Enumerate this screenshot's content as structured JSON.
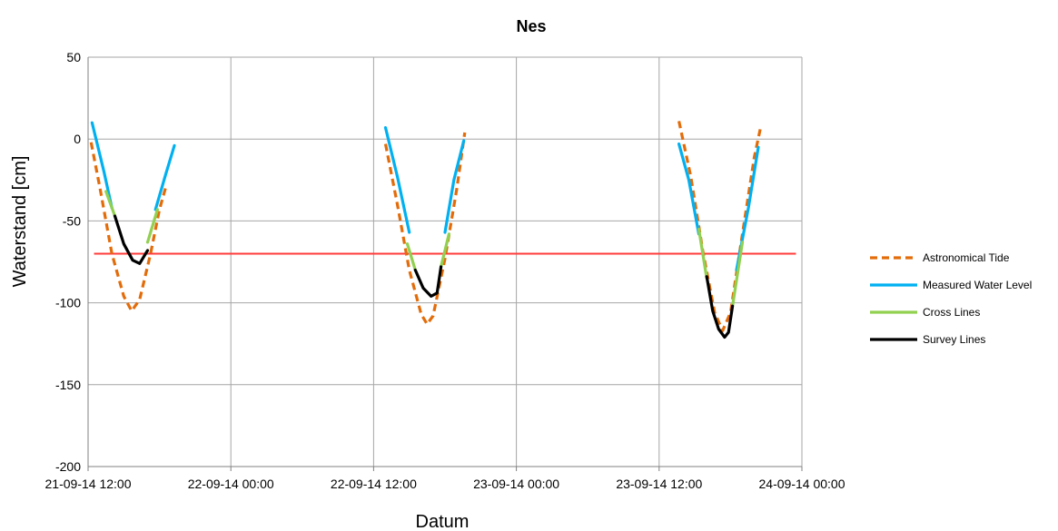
{
  "chart_data": {
    "type": "line",
    "title": "Nes",
    "xlabel": "Datum",
    "ylabel": "Waterstand [cm]",
    "x_ticks": [
      "21-09-14 12:00",
      "22-09-14 00:00",
      "22-09-14 12:00",
      "23-09-14 00:00",
      "23-09-14 12:00",
      "24-09-14 00:00"
    ],
    "xlim": [
      "2014-09-21 12:00",
      "2014-09-24 00:00"
    ],
    "ylim": [
      -200,
      50
    ],
    "y_ticks": [
      50,
      0,
      -50,
      -100,
      -150,
      -200
    ],
    "grid": true,
    "legend_position": "right",
    "reference_line": {
      "y": -70,
      "color": "#ff3b3b"
    },
    "series": [
      {
        "name": "Astronomical Tide",
        "color": "#e36c0a",
        "style": "dashed",
        "segments": [
          [
            [
              "2014-09-21 12:15",
              -2
            ],
            [
              "2014-09-21 13:00",
              -30
            ],
            [
              "2014-09-21 14:00",
              -70
            ],
            [
              "2014-09-21 15:00",
              -96
            ],
            [
              "2014-09-21 15:40",
              -105
            ],
            [
              "2014-09-21 16:20",
              -98
            ],
            [
              "2014-09-21 17:15",
              -70
            ],
            [
              "2014-09-21 18:00",
              -43
            ],
            [
              "2014-09-21 18:30",
              -30
            ]
          ],
          [
            [
              "2014-09-22 13:00",
              -3
            ],
            [
              "2014-09-22 14:00",
              -40
            ],
            [
              "2014-09-22 15:00",
              -80
            ],
            [
              "2014-09-22 16:00",
              -107
            ],
            [
              "2014-09-22 16:30",
              -113
            ],
            [
              "2014-09-22 17:00",
              -108
            ],
            [
              "2014-09-22 18:00",
              -73
            ],
            [
              "2014-09-22 19:00",
              -30
            ],
            [
              "2014-09-22 19:40",
              4
            ]
          ],
          [
            [
              "2014-09-23 13:40",
              11
            ],
            [
              "2014-09-23 14:40",
              -23
            ],
            [
              "2014-09-23 15:40",
              -68
            ],
            [
              "2014-09-23 16:40",
              -106
            ],
            [
              "2014-09-23 17:20",
              -117
            ],
            [
              "2014-09-23 18:00",
              -106
            ],
            [
              "2014-09-23 19:00",
              -58
            ],
            [
              "2014-09-23 20:00",
              -11
            ],
            [
              "2014-09-23 20:30",
              6
            ]
          ]
        ]
      },
      {
        "name": "Measured Water Level",
        "color": "#00b0f0",
        "style": "solid",
        "segments": [
          [
            [
              "2014-09-21 12:20",
              10
            ],
            [
              "2014-09-21 13:20",
              -20
            ],
            [
              "2014-09-21 14:00",
              -42
            ]
          ],
          [
            [
              "2014-09-21 17:40",
              -43
            ],
            [
              "2014-09-21 18:30",
              -22
            ],
            [
              "2014-09-21 19:15",
              -4
            ]
          ],
          [
            [
              "2014-09-22 13:00",
              7
            ],
            [
              "2014-09-22 14:00",
              -23
            ],
            [
              "2014-09-22 15:00",
              -57
            ]
          ],
          [
            [
              "2014-09-22 18:00",
              -57
            ],
            [
              "2014-09-22 18:45",
              -25
            ],
            [
              "2014-09-22 19:35",
              -1
            ]
          ],
          [
            [
              "2014-09-23 13:40",
              -3
            ],
            [
              "2014-09-23 14:30",
              -25
            ],
            [
              "2014-09-23 15:20",
              -58
            ]
          ],
          [
            [
              "2014-09-23 18:30",
              -80
            ],
            [
              "2014-09-23 19:30",
              -42
            ],
            [
              "2014-09-23 20:20",
              -5
            ]
          ]
        ]
      },
      {
        "name": "Cross Lines",
        "color": "#92d050",
        "style": "solid",
        "segments": [
          [
            [
              "2014-09-21 13:30",
              -32
            ],
            [
              "2014-09-21 14:15",
              -47
            ]
          ],
          [
            [
              "2014-09-21 17:00",
              -63
            ],
            [
              "2014-09-21 17:50",
              -43
            ]
          ],
          [
            [
              "2014-09-22 14:50",
              -64
            ],
            [
              "2014-09-22 15:30",
              -80
            ]
          ],
          [
            [
              "2014-09-22 17:40",
              -78
            ],
            [
              "2014-09-22 18:20",
              -58
            ]
          ],
          [
            [
              "2014-09-23 15:20",
              -55
            ],
            [
              "2014-09-23 16:00",
              -85
            ]
          ],
          [
            [
              "2014-09-23 18:10",
              -102
            ],
            [
              "2014-09-23 19:00",
              -63
            ]
          ]
        ]
      },
      {
        "name": "Survey Lines",
        "color": "#000000",
        "style": "solid",
        "segments": [
          [
            [
              "2014-09-21 14:15",
              -47
            ],
            [
              "2014-09-21 15:00",
              -64
            ],
            [
              "2014-09-21 15:45",
              -74
            ],
            [
              "2014-09-21 16:20",
              -76
            ],
            [
              "2014-09-21 17:00",
              -68
            ]
          ],
          [
            [
              "2014-09-22 15:30",
              -80
            ],
            [
              "2014-09-22 16:10",
              -91
            ],
            [
              "2014-09-22 16:50",
              -96
            ],
            [
              "2014-09-22 17:20",
              -94
            ],
            [
              "2014-09-22 17:40",
              -78
            ]
          ],
          [
            [
              "2014-09-23 16:00",
              -84
            ],
            [
              "2014-09-23 16:30",
              -105
            ],
            [
              "2014-09-23 17:00",
              -116
            ],
            [
              "2014-09-23 17:30",
              -121
            ],
            [
              "2014-09-23 17:50",
              -118
            ],
            [
              "2014-09-23 18:10",
              -102
            ]
          ]
        ]
      }
    ]
  }
}
